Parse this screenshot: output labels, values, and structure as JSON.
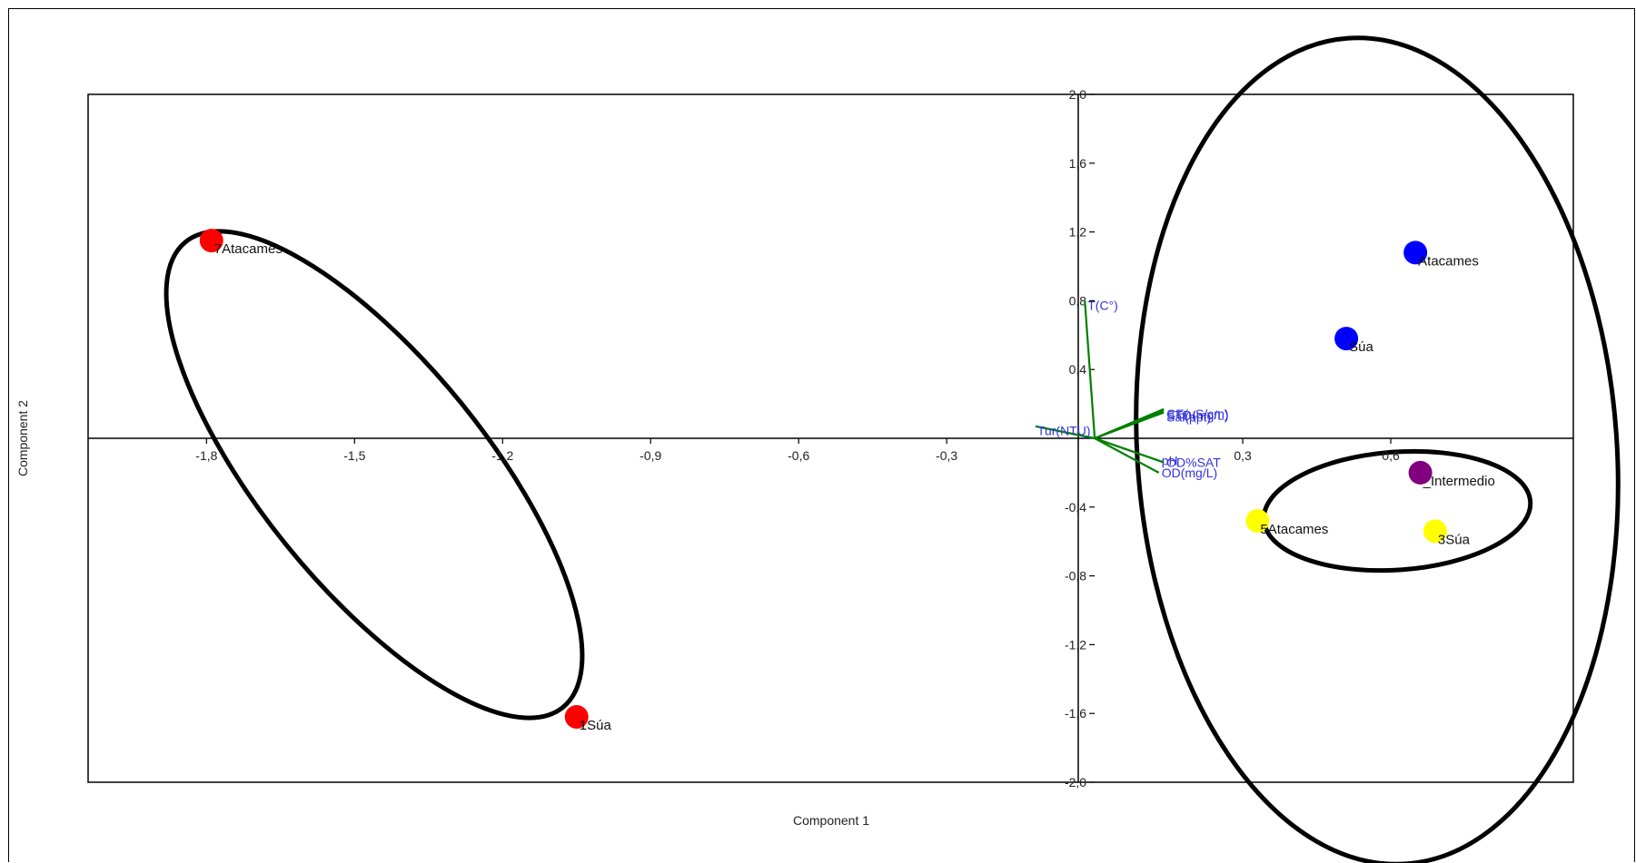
{
  "chart_data": {
    "type": "scatter",
    "title": "",
    "xlabel": "Component 1",
    "ylabel": "Component 2",
    "xlim": [
      -2.04,
      0.97
    ],
    "ylim": [
      -2.0,
      2.0
    ],
    "xticks": [
      -1.8,
      -1.5,
      -1.2,
      -0.9,
      -0.6,
      -0.3,
      0.3,
      0.6
    ],
    "xtick_labels": [
      "-1,8",
      "-1,5",
      "-1,2",
      "-0,9",
      "-0,6",
      "-0,3",
      "0,3",
      "0,6"
    ],
    "yticks": [
      2.0,
      1.6,
      1.2,
      0.8,
      0.4,
      -0.4,
      -0.8,
      -1.2,
      -1.6,
      -2.0
    ],
    "ytick_labels": [
      "2,0",
      "1,6",
      "1,2",
      "0,8",
      "0,4",
      "-0,4",
      "-0,8",
      "-1,2",
      "-1,6",
      "-2,0"
    ],
    "points": [
      {
        "label": "7Atacames",
        "x": -1.79,
        "y": 1.15,
        "color": "#ff0000"
      },
      {
        "label": "1Súa",
        "x": -1.05,
        "y": -1.62,
        "color": "#ff0000"
      },
      {
        "label": "Atacames",
        "x": 0.65,
        "y": 1.08,
        "color": "#0000ff"
      },
      {
        "label": "Súa",
        "x": 0.51,
        "y": 0.58,
        "color": "#0000ff"
      },
      {
        "label": "_Intermedio",
        "x": 0.66,
        "y": -0.2,
        "color": "#800080"
      },
      {
        "label": "5Atacames",
        "x": 0.33,
        "y": -0.48,
        "color": "#ffff00"
      },
      {
        "label": "3Súa",
        "x": 0.69,
        "y": -0.54,
        "color": "#ffff00"
      }
    ],
    "vectors": [
      {
        "label": "T(C°)",
        "x": -0.02,
        "y": 0.8
      },
      {
        "label": "Tur(NTU)",
        "x": -0.12,
        "y": 0.07
      },
      {
        "label": "CE(uS/cm)",
        "x": 0.14,
        "y": 0.17
      },
      {
        "label": "Sal(ppt)",
        "x": 0.14,
        "y": 0.15
      },
      {
        "label": "STD(mg/L)",
        "x": 0.14,
        "y": 0.16
      },
      {
        "label": "pH",
        "x": 0.13,
        "y": -0.13
      },
      {
        "label": "OD%SAT",
        "x": 0.14,
        "y": -0.14
      },
      {
        "label": "OD(mg/L)",
        "x": 0.13,
        "y": -0.2
      }
    ],
    "vector_color": "#008000",
    "vector_label_color": "#3333dd",
    "group_outline_color": "#000000",
    "grid": false,
    "legend": "none"
  }
}
